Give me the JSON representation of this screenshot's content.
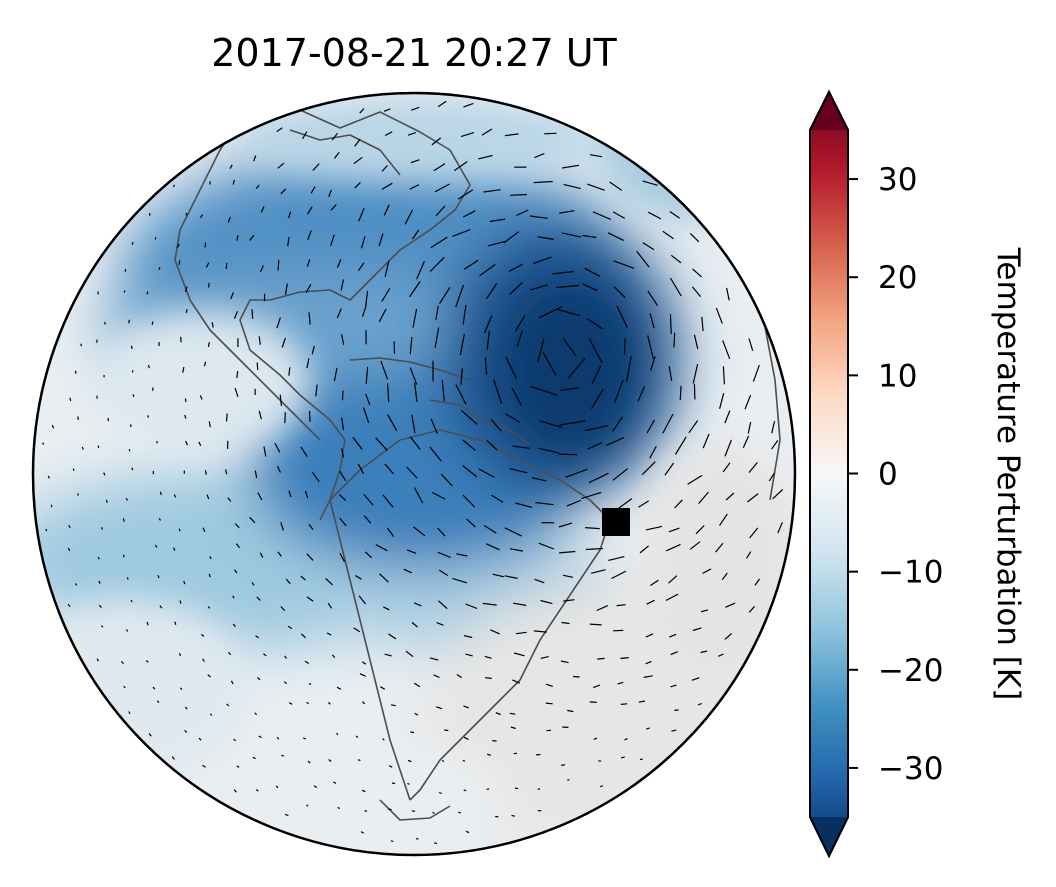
{
  "figure": {
    "title": "2017-08-21  20:27 UT"
  },
  "map": {
    "projection": "orthographic",
    "center": "Americas / Atlantic",
    "colormap": "RdBu_r",
    "features": [
      "coastlines",
      "temperature-perturbation-field",
      "wind-vector-ticks",
      "location-marker"
    ],
    "marker": {
      "name": "square-marker",
      "color": "#000000"
    }
  },
  "colorbar": {
    "label": "Temperature Perturbation [K]",
    "vmin": -35,
    "vmax": 35,
    "extend": "both",
    "ticks": [
      30,
      20,
      10,
      0,
      -10,
      -20,
      -30
    ],
    "tick_labels": [
      "30",
      "20",
      "10",
      "0",
      "−10",
      "−20",
      "−30"
    ],
    "colors": [
      "#053061",
      "#2166ac",
      "#4393c3",
      "#92c5de",
      "#d1e5f0",
      "#f7f7f7",
      "#fddbc7",
      "#f4a582",
      "#d6604d",
      "#b2182b",
      "#67001f"
    ]
  }
}
